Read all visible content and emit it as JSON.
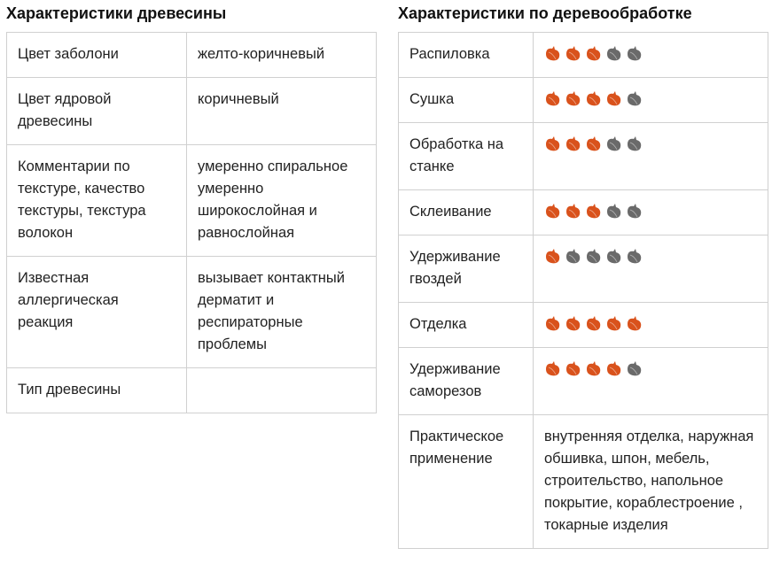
{
  "left": {
    "title": "Характеристики древесины",
    "rows": [
      {
        "label": "Цвет заболони",
        "value": "желто-коричневый"
      },
      {
        "label": "Цвет ядровой древесины",
        "value": "коричневый"
      },
      {
        "label": "Комментарии по текстуре, качество текстуры, текстура волокон",
        "value": "умеренно спиральное умеренно широкослойная и равнослойная"
      },
      {
        "label": "Известная аллергическая реакция",
        "value": "вызывает контактный дерматит и респираторные проблемы"
      },
      {
        "label": "Тип древесины"
      }
    ]
  },
  "right": {
    "title": "Характеристики по деревообработке",
    "max_rating": 5,
    "rows": [
      {
        "label": "Распиловка",
        "rating": 3
      },
      {
        "label": "Сушка",
        "rating": 4
      },
      {
        "label": "Обработка на станке",
        "rating": 3
      },
      {
        "label": "Склеивание",
        "rating": 3
      },
      {
        "label": "Удерживание гвоздей",
        "rating": 1
      },
      {
        "label": "Отделка",
        "rating": 5
      },
      {
        "label": "Удерживание саморезов",
        "rating": 4
      },
      {
        "label": "Практическое применение",
        "value": "внутренняя отделка, наружная обшивка, шпон, мебель, строительство, напольное покрытие, кораблестроение , токарные изделия"
      }
    ]
  }
}
